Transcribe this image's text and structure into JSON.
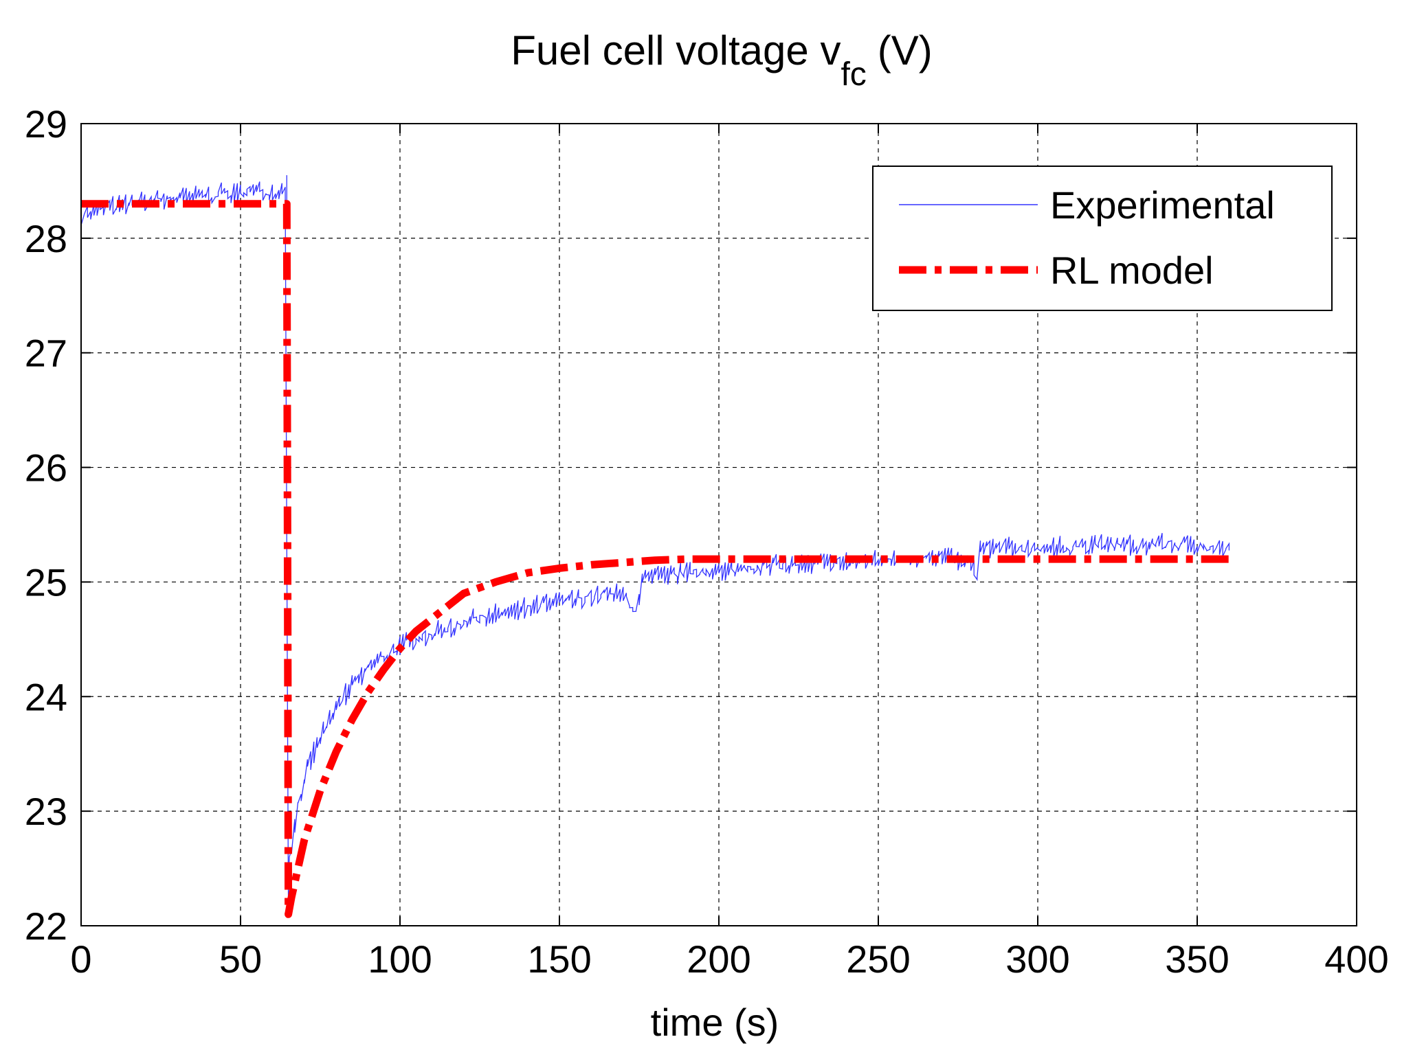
{
  "chart_data": {
    "type": "line",
    "title_main": "Fuel cell voltage v",
    "title_sub": "fc",
    "title_unit": "(V)",
    "xlabel": "time (s)",
    "ylabel": "",
    "xlim": [
      0,
      400
    ],
    "ylim": [
      22,
      29
    ],
    "xticks": [
      0,
      50,
      100,
      150,
      200,
      250,
      300,
      350,
      400
    ],
    "yticks": [
      22,
      23,
      24,
      25,
      26,
      27,
      28,
      29
    ],
    "xtick_labels": [
      "0",
      "50",
      "100",
      "150",
      "200",
      "250",
      "300",
      "350",
      "400"
    ],
    "ytick_labels": [
      "22",
      "23",
      "24",
      "25",
      "26",
      "27",
      "28",
      "29"
    ],
    "grid": true,
    "legend_position": "top-right",
    "series": [
      {
        "name": "Experimental",
        "color": "#3333ff",
        "style": "solid-noisy",
        "noise_amplitude": 0.1,
        "x": [
          0,
          5,
          10,
          20,
          30,
          40,
          50,
          60,
          64,
          65,
          66,
          68,
          70,
          75,
          80,
          85,
          90,
          95,
          100,
          110,
          120,
          130,
          140,
          150,
          160,
          170,
          174,
          175,
          176,
          177,
          180,
          190,
          200,
          220,
          240,
          260,
          270,
          280,
          281,
          282,
          283,
          290,
          300,
          320,
          340,
          360
        ],
        "values": [
          28.2,
          28.25,
          28.28,
          28.32,
          28.35,
          28.38,
          28.4,
          28.42,
          28.45,
          22.3,
          22.7,
          23.05,
          23.3,
          23.65,
          23.9,
          24.1,
          24.25,
          24.35,
          24.45,
          24.55,
          24.65,
          24.72,
          24.78,
          24.83,
          24.87,
          24.9,
          24.75,
          24.85,
          25.0,
          25.02,
          25.05,
          25.08,
          25.1,
          25.15,
          25.18,
          25.2,
          25.22,
          25.15,
          25.02,
          25.3,
          25.3,
          25.3,
          25.3,
          25.32,
          25.33,
          25.3
        ]
      },
      {
        "name": "RL model",
        "color": "#ff0000",
        "style": "dash-dot",
        "x": [
          0,
          64.5,
          65,
          66,
          70,
          75,
          80,
          85,
          90,
          95,
          100,
          105,
          110,
          120,
          130,
          140,
          150,
          160,
          170,
          180,
          190,
          200,
          250,
          300,
          360
        ],
        "values": [
          28.3,
          28.3,
          22.1,
          22.25,
          22.75,
          23.18,
          23.52,
          23.8,
          24.04,
          24.24,
          24.42,
          24.57,
          24.68,
          24.9,
          25.0,
          25.08,
          25.12,
          25.15,
          25.17,
          25.19,
          25.2,
          25.2,
          25.2,
          25.2,
          25.2
        ]
      }
    ]
  }
}
